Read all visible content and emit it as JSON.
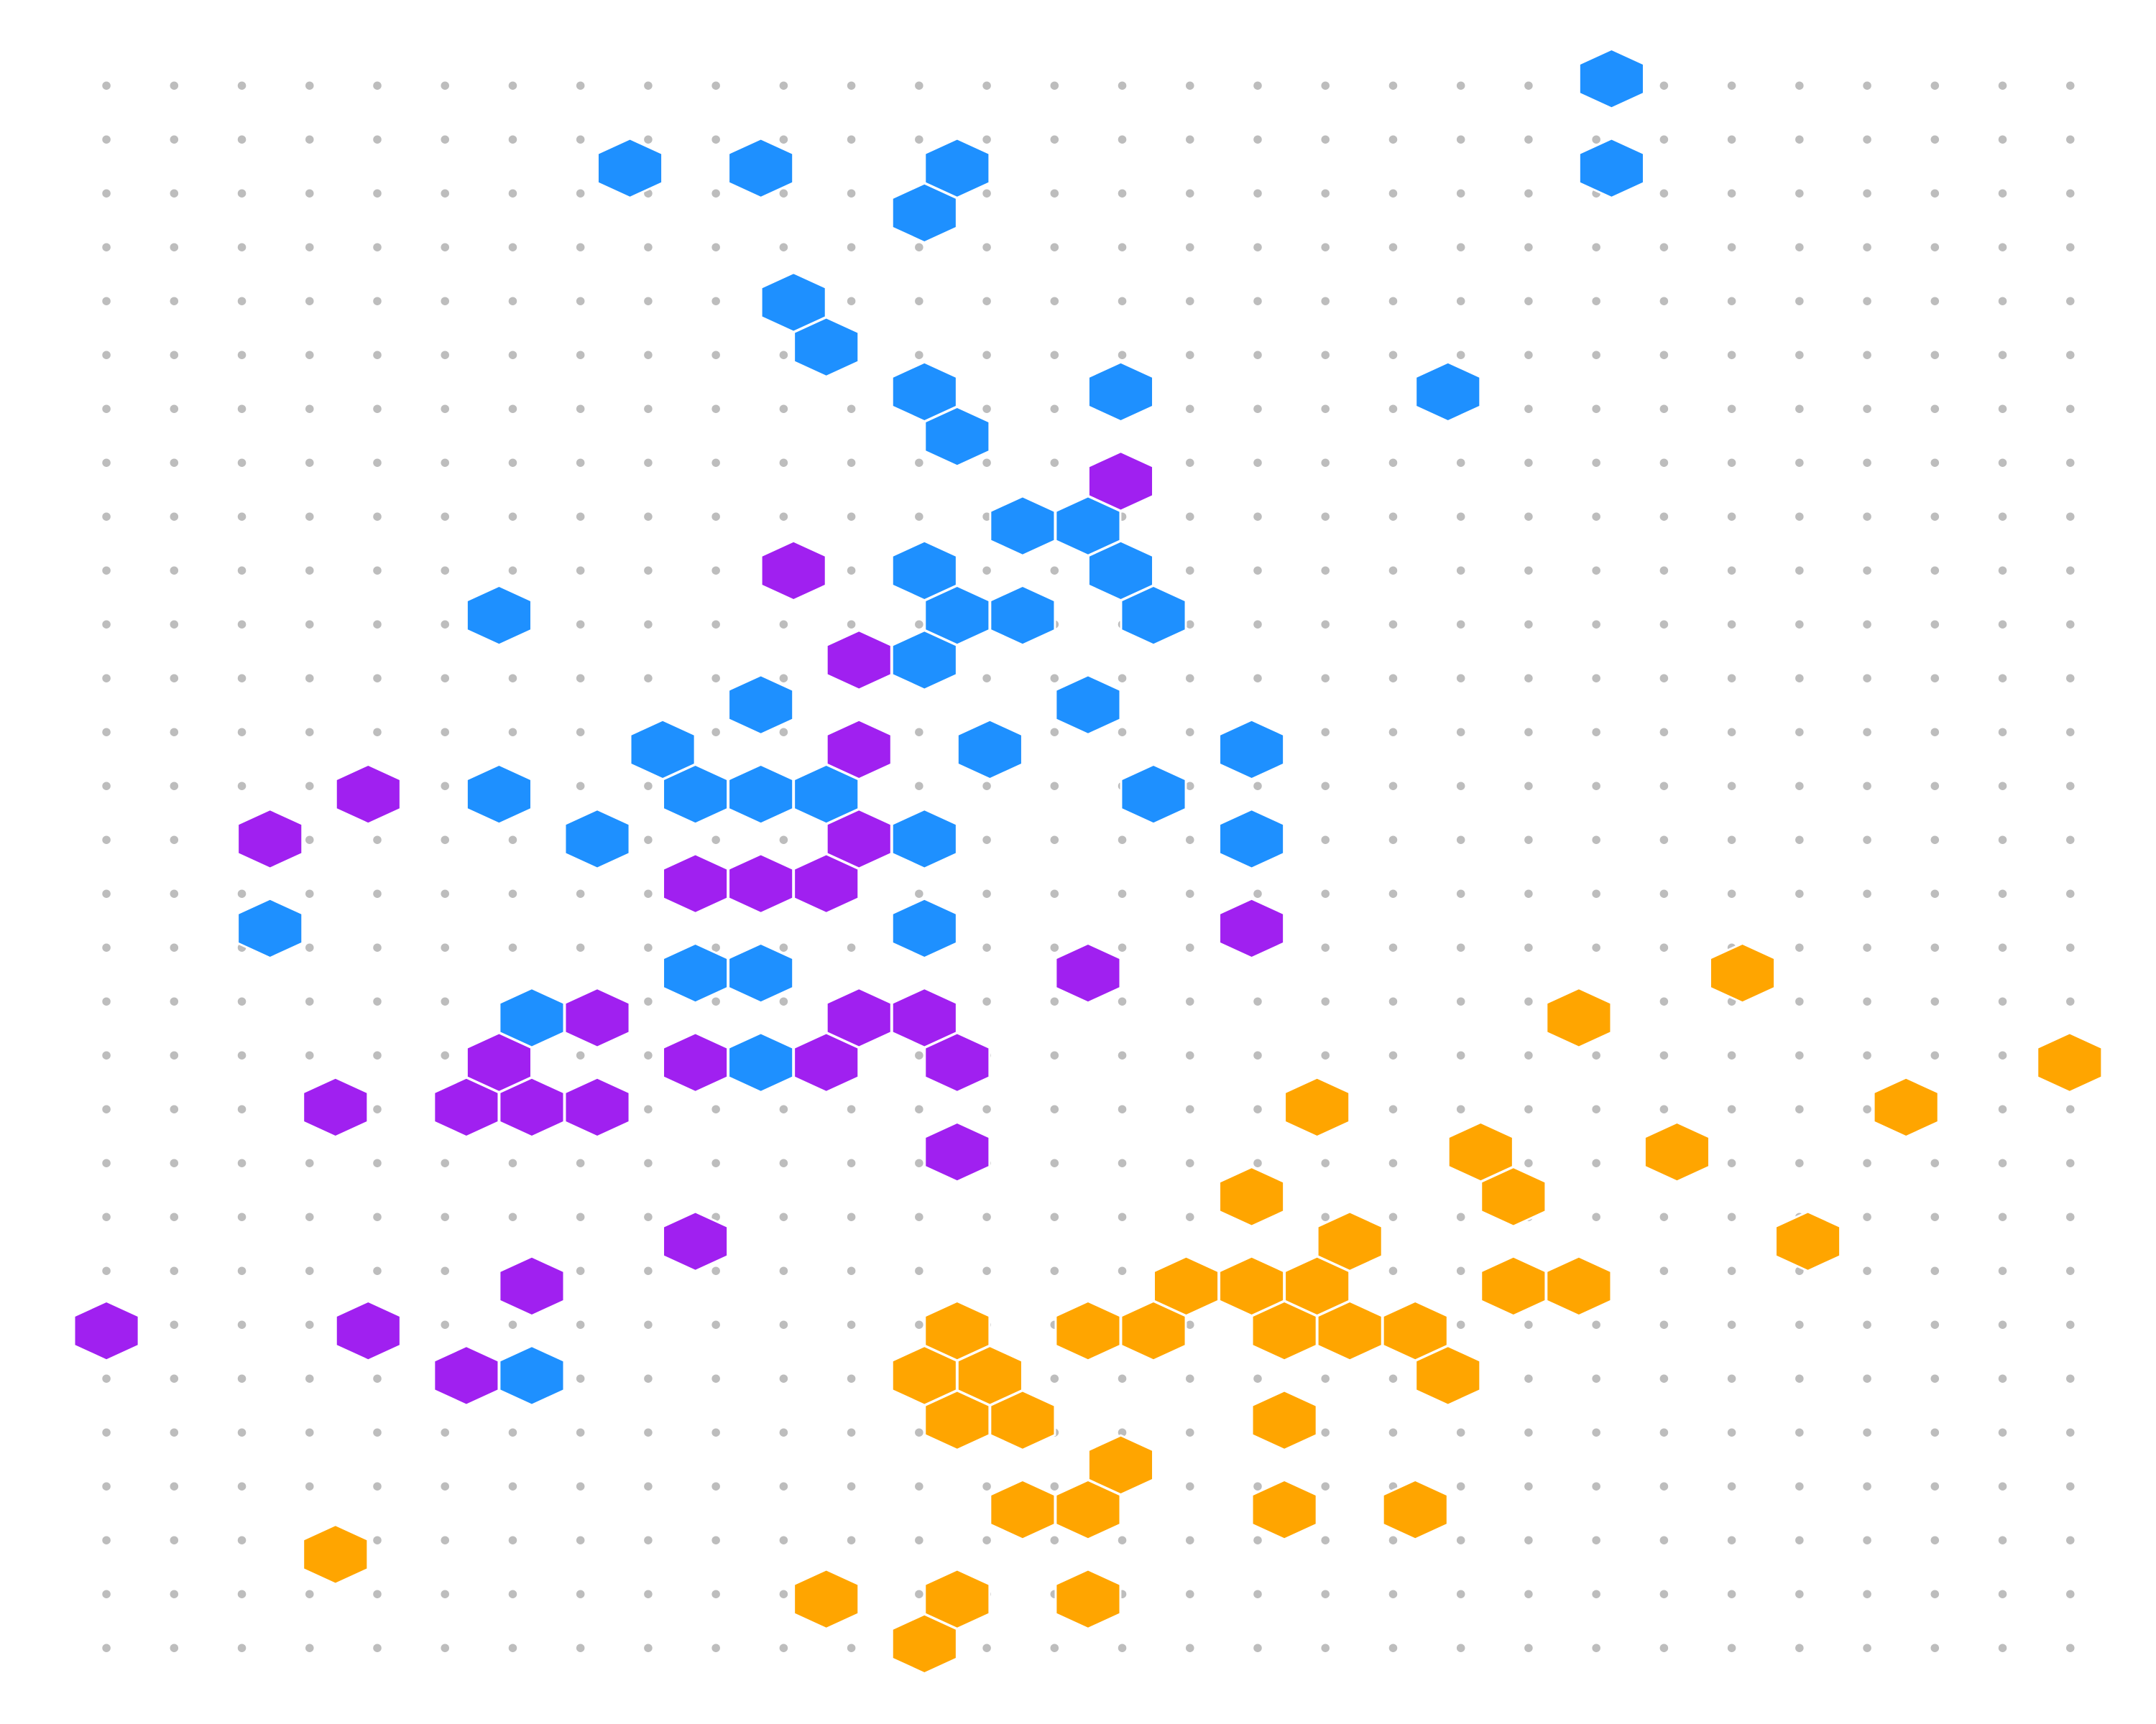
{
  "groups": [
    {
      "color": "#1e90ff",
      "cells": [
        [
          23,
          0
        ],
        [
          8,
          2
        ],
        [
          10,
          2
        ],
        [
          13,
          2
        ],
        [
          23,
          2
        ],
        [
          12,
          3
        ],
        [
          10,
          5
        ],
        [
          11,
          6
        ],
        [
          12,
          7
        ],
        [
          15,
          7
        ],
        [
          20,
          7
        ],
        [
          13,
          8
        ],
        [
          14,
          10
        ],
        [
          15,
          10
        ],
        [
          12,
          11
        ],
        [
          15,
          11
        ],
        [
          6,
          12
        ],
        [
          13,
          12
        ],
        [
          14,
          12
        ],
        [
          16,
          12
        ],
        [
          12,
          13
        ],
        [
          10,
          14
        ],
        [
          15,
          14
        ],
        [
          8,
          15
        ],
        [
          13,
          15
        ],
        [
          17,
          15
        ],
        [
          6,
          16
        ],
        [
          9,
          16
        ],
        [
          10,
          16
        ],
        [
          11,
          16
        ],
        [
          16,
          16
        ],
        [
          7,
          17
        ],
        [
          12,
          17
        ],
        [
          17,
          17
        ],
        [
          2,
          19
        ],
        [
          12,
          19
        ],
        [
          9,
          20
        ],
        [
          10,
          20
        ],
        [
          6,
          21
        ],
        [
          10,
          22
        ],
        [
          6,
          29
        ]
      ]
    },
    {
      "color": "#a020f0",
      "cells": [
        [
          15,
          9
        ],
        [
          10,
          11
        ],
        [
          11,
          13
        ],
        [
          11,
          15
        ],
        [
          4,
          16
        ],
        [
          2,
          17
        ],
        [
          11,
          17
        ],
        [
          9,
          18
        ],
        [
          10,
          18
        ],
        [
          11,
          18
        ],
        [
          17,
          19
        ],
        [
          15,
          20
        ],
        [
          7,
          21
        ],
        [
          11,
          21
        ],
        [
          12,
          21
        ],
        [
          6,
          22
        ],
        [
          9,
          22
        ],
        [
          11,
          22
        ],
        [
          13,
          22
        ],
        [
          3,
          23
        ],
        [
          5,
          23
        ],
        [
          6,
          23
        ],
        [
          7,
          23
        ],
        [
          13,
          24
        ],
        [
          9,
          26
        ],
        [
          6,
          27
        ],
        [
          0,
          28
        ],
        [
          4,
          28
        ],
        [
          5,
          29
        ]
      ]
    },
    {
      "color": "#ffa500",
      "cells": [
        [
          25,
          20
        ],
        [
          22,
          21
        ],
        [
          30,
          22
        ],
        [
          18,
          23
        ],
        [
          27,
          23
        ],
        [
          21,
          24
        ],
        [
          24,
          24
        ],
        [
          17,
          25
        ],
        [
          21,
          25
        ],
        [
          19,
          26
        ],
        [
          26,
          26
        ],
        [
          16,
          27
        ],
        [
          17,
          27
        ],
        [
          18,
          27
        ],
        [
          21,
          27
        ],
        [
          22,
          27
        ],
        [
          13,
          28
        ],
        [
          15,
          28
        ],
        [
          16,
          28
        ],
        [
          18,
          28
        ],
        [
          19,
          28
        ],
        [
          20,
          28
        ],
        [
          12,
          29
        ],
        [
          13,
          29
        ],
        [
          20,
          29
        ],
        [
          13,
          30
        ],
        [
          14,
          30
        ],
        [
          18,
          30
        ],
        [
          15,
          31
        ],
        [
          14,
          32
        ],
        [
          15,
          32
        ],
        [
          18,
          32
        ],
        [
          20,
          32
        ],
        [
          3,
          33
        ],
        [
          11,
          34
        ],
        [
          13,
          34
        ],
        [
          15,
          34
        ],
        [
          12,
          35
        ]
      ]
    }
  ]
}
